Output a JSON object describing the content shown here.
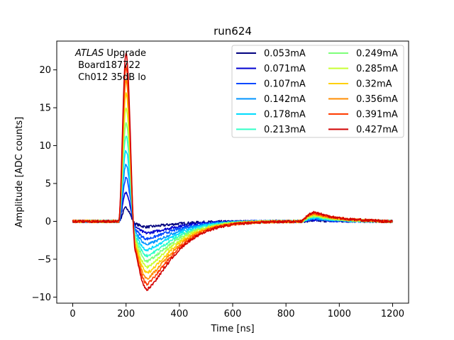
{
  "chart_data": {
    "type": "line",
    "title": "run624",
    "xlabel": "Time [ns]",
    "ylabel": "Amplitude [ADC counts]",
    "xlim": [
      -60,
      1260
    ],
    "ylim": [
      -10.8,
      23.8
    ],
    "xticks": [
      0,
      200,
      400,
      600,
      800,
      1000,
      1200
    ],
    "yticks": [
      -10,
      -5,
      0,
      5,
      10,
      15,
      20
    ],
    "grid": false,
    "legend_position": "top-right",
    "legend_columns": 2,
    "annotation": {
      "line1_italic": "ATLAS",
      "line1_rest": " Upgrade",
      "line2": " Board187722",
      "line3": " Ch012 35dB lo"
    },
    "pulse_model": {
      "baseline": 0.0,
      "peak_time_ns": 200,
      "undershoot_time_ns": 280,
      "reflection_time_ns": 910,
      "undershoot_to_peak_ratio": -0.405,
      "reflection_to_peak_ratio": 0.055
    },
    "series": [
      {
        "name": "0.053mA",
        "color": "#00007f",
        "peak": 1.8
      },
      {
        "name": "0.071mA",
        "color": "#0000d0",
        "peak": 3.8
      },
      {
        "name": "0.107mA",
        "color": "#0048ff",
        "peak": 5.7
      },
      {
        "name": "0.142mA",
        "color": "#0094ff",
        "peak": 7.5
      },
      {
        "name": "0.178mA",
        "color": "#00dcfe",
        "peak": 9.3
      },
      {
        "name": "0.213mA",
        "color": "#30ffc7",
        "peak": 11.2
      },
      {
        "name": "0.249mA",
        "color": "#7dff7a",
        "peak": 13.0
      },
      {
        "name": "0.285mA",
        "color": "#c7ff30",
        "peak": 14.9
      },
      {
        "name": "0.32mA",
        "color": "#ffd000",
        "peak": 16.8
      },
      {
        "name": "0.356mA",
        "color": "#ff8c00",
        "peak": 18.6
      },
      {
        "name": "0.391mA",
        "color": "#ff3b00",
        "peak": 20.4
      },
      {
        "name": "0.427mA",
        "color": "#d20000",
        "peak": 22.2
      }
    ]
  }
}
